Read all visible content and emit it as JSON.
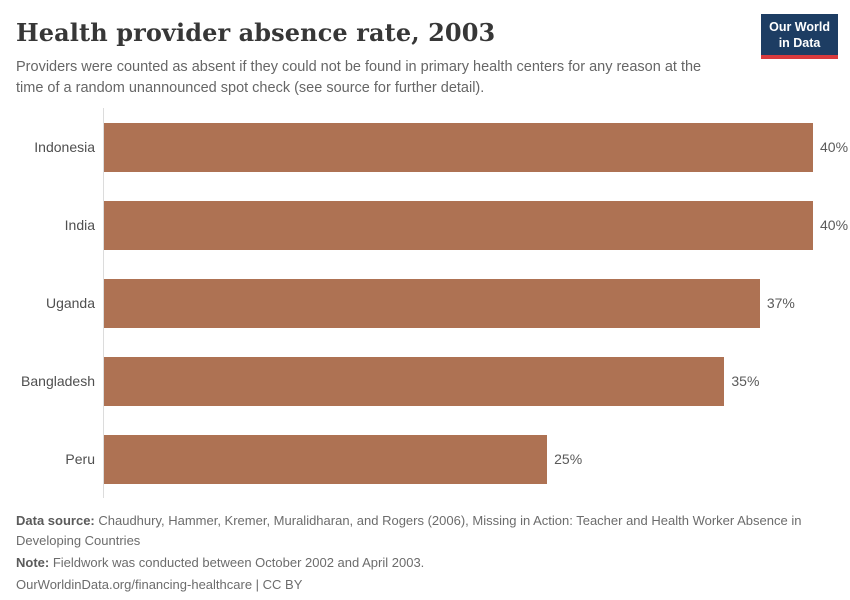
{
  "header": {
    "title": "Health provider absence rate, 2003",
    "subtitle": "Providers were counted as absent if they could not be found in primary health centers for any reason at the time of a random unannounced spot check (see source for further detail).",
    "logo": {
      "line1": "Our World",
      "line2": "in Data"
    }
  },
  "chart_data": {
    "type": "bar",
    "orientation": "horizontal",
    "title": "Health provider absence rate, 2003",
    "categories": [
      "Indonesia",
      "India",
      "Uganda",
      "Bangladesh",
      "Peru"
    ],
    "values": [
      40,
      40,
      37,
      35,
      25
    ],
    "value_labels": [
      "40%",
      "40%",
      "37%",
      "35%",
      "25%"
    ],
    "xlim": [
      0,
      40
    ],
    "unit": "%",
    "grid": false,
    "legend": "none"
  },
  "footer": {
    "source_label": "Data source:",
    "source_text": " Chaudhury, Hammer, Kremer, Muralidharan, and Rogers (2006), Missing in Action: Teacher and Health Worker Absence in Developing Countries",
    "note_label": "Note:",
    "note_text": " Fieldwork was conducted between October 2002 and April 2003.",
    "link": "OurWorldinData.org/financing-healthcare",
    "separator": " | ",
    "license": "CC BY"
  },
  "colors": {
    "bar": "#ae7253",
    "logo_bg": "#1d3d63",
    "logo_accent": "#d93a3d",
    "axis": "#dcdcdc"
  }
}
